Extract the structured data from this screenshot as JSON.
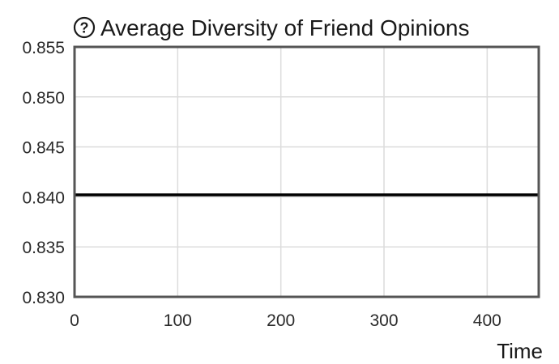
{
  "help_icon": "question-circle-icon",
  "chart_data": {
    "type": "line",
    "title": "Average Diversity of Friend Opinions",
    "xlabel": "Time",
    "ylabel": "",
    "xlim": [
      0,
      450
    ],
    "ylim": [
      0.83,
      0.855
    ],
    "x_ticks": [
      0,
      100,
      200,
      300,
      400
    ],
    "y_ticks": [
      0.83,
      0.835,
      0.84,
      0.845,
      0.85,
      0.855
    ],
    "x_tick_labels": [
      "0",
      "100",
      "200",
      "300",
      "400"
    ],
    "y_tick_labels": [
      "0.830",
      "0.835",
      "0.840",
      "0.845",
      "0.850",
      "0.855"
    ],
    "grid": true,
    "legend": "none",
    "series": [
      {
        "color": "#000000",
        "x": [
          0,
          50,
          100,
          150,
          200,
          250,
          300,
          350,
          400,
          450
        ],
        "y": [
          0.8402,
          0.8402,
          0.8402,
          0.8402,
          0.8402,
          0.8402,
          0.8402,
          0.8402,
          0.8402,
          0.8402
        ]
      }
    ],
    "colors": {
      "grid": "#dcdcdc",
      "frame": "#555555",
      "line": "#000000"
    }
  }
}
